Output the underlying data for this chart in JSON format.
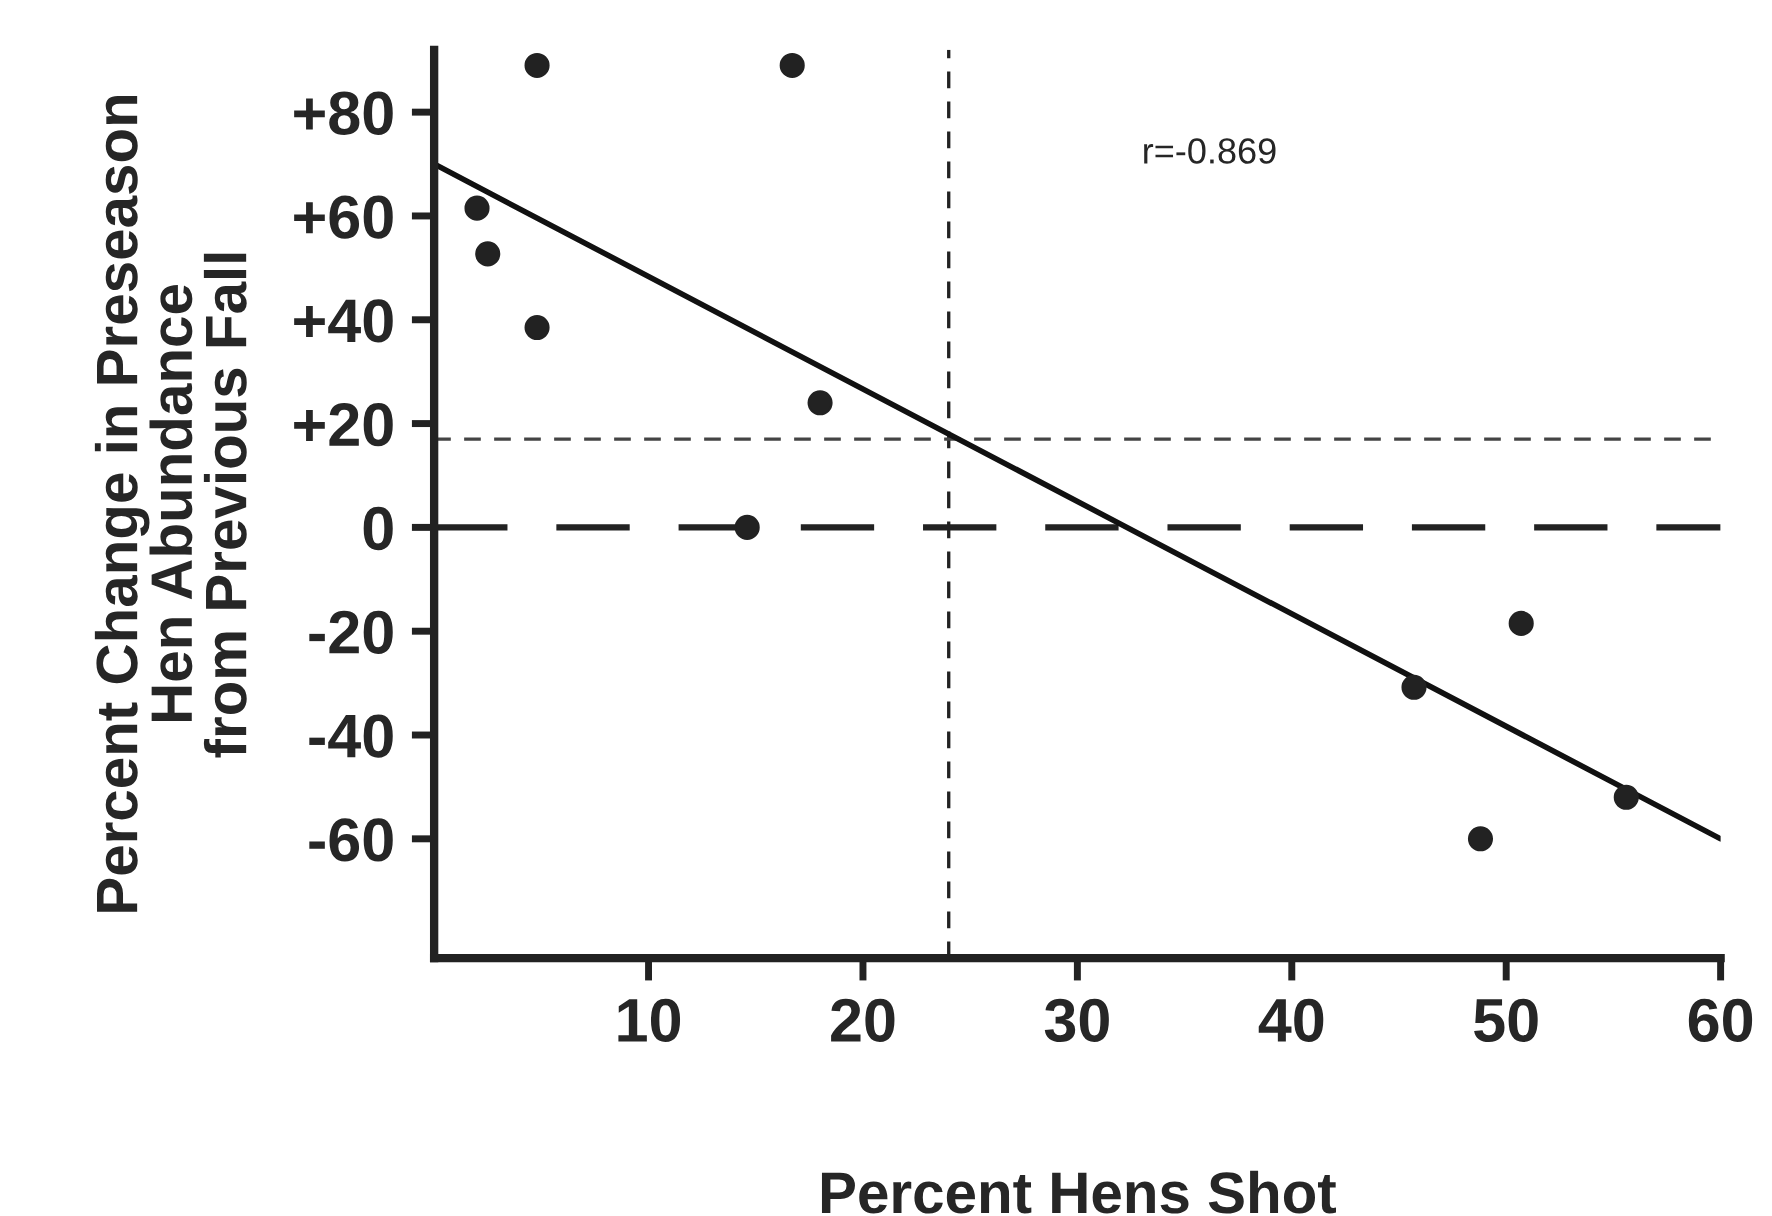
{
  "chart_data": {
    "type": "scatter",
    "xlabel": "Percent Hens Shot",
    "ylabel": "Percent Change in Preseason\nHen Abundance\nfrom Previous Fall",
    "series": [
      {
        "marker": "circle",
        "color": "#222222",
        "x": [
          4.8,
          16.7,
          2.0,
          2.5,
          4.8,
          18.0,
          14.6,
          45.7,
          50.7,
          48.8,
          55.6
        ],
        "values": [
          89,
          89,
          61.5,
          52.7,
          38.5,
          24,
          0,
          -30.8,
          -18.5,
          -60,
          -52
        ]
      },
      {
        "type": "line",
        "color": "#111111",
        "x": [
          0,
          60
        ],
        "values": [
          70,
          -60
        ]
      }
    ],
    "grid": false,
    "xlim": [
      0,
      60
    ],
    "xticks": [
      10,
      20,
      30,
      40,
      50,
      60
    ],
    "ylim": [
      -83,
      92
    ],
    "yticks": [
      {
        "value": 80,
        "label": "+80"
      },
      {
        "value": 60,
        "label": "+60"
      },
      {
        "value": 40,
        "label": "+40"
      },
      {
        "value": 20,
        "label": "+20"
      },
      0,
      {
        "value": -20,
        "label": "-20"
      },
      {
        "value": -40,
        "label": "-40"
      },
      {
        "value": -60,
        "label": "-60"
      }
    ],
    "ref_lines": [
      {
        "axis": "x",
        "value": 24,
        "color": "#222222",
        "line_style": "dashed"
      },
      {
        "axis": "y",
        "value": 17,
        "color": "#444444",
        "line_style": "dashed"
      },
      {
        "axis": "y",
        "value": 0,
        "color": "#222222",
        "line_style": "longdash"
      }
    ],
    "annotations": [
      "r=-0.869"
    ]
  }
}
